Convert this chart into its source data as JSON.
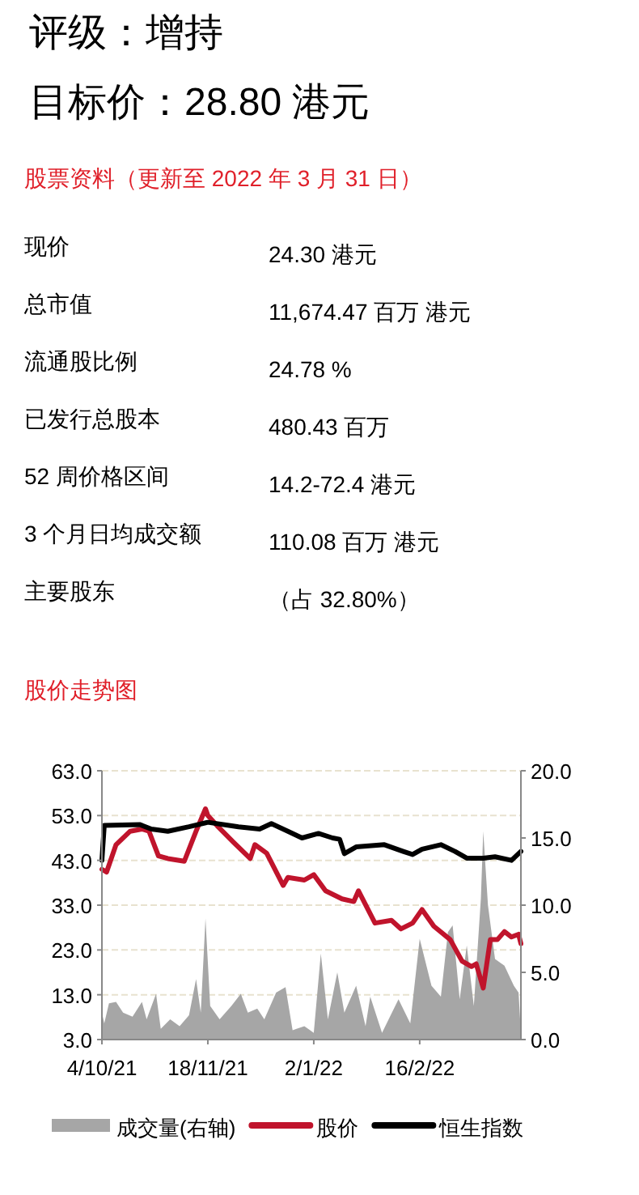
{
  "chart_data": [
    {
      "type": "other",
      "title": "评级：增持",
      "subtitle": "目标价：28.80 港元",
      "annotations": [
        "股票资料（更新至 2022 年 3 月 31 日）",
        "现价",
        "24.30 港元",
        "总市值",
        "11,674.47 百万 港元",
        "流通股比例",
        "24.78 %",
        "已发行总股本",
        "480.43 百万",
        "52 周价格区间",
        "14.2-72.4 港元",
        "3 个月日均成交额",
        "110.08 百万 港元",
        "主要股东",
        "（占 32.80%）"
      ]
    },
    {
      "type": "line",
      "title": "股价走势图",
      "xlim": [
        "2021-10-04",
        "2022-03-31"
      ],
      "xticks": [
        {
          "value": "2021-10-04",
          "label": "4/10/21"
        },
        {
          "value": "2021-11-18",
          "label": "18/11/21"
        },
        {
          "value": "2022-01-02",
          "label": "2/1/22"
        },
        {
          "value": "2022-02-16",
          "label": "16/2/22"
        }
      ],
      "ylim": [
        3,
        63
      ],
      "yticks": [
        {
          "value": 3,
          "label": "3.0"
        },
        {
          "value": 13,
          "label": "13.0"
        },
        {
          "value": 23,
          "label": "23.0"
        },
        {
          "value": 33,
          "label": "33.0"
        },
        {
          "value": 43,
          "label": "43.0"
        },
        {
          "value": 53,
          "label": "53.0"
        },
        {
          "value": 63,
          "label": "63.0"
        }
      ],
      "y2lim": [
        0,
        20
      ],
      "y2ticks": [
        {
          "value": 0,
          "label": "0.0"
        },
        {
          "value": 5,
          "label": "5.0"
        },
        {
          "value": 10,
          "label": "10.0"
        },
        {
          "value": 15,
          "label": "15.0"
        },
        {
          "value": 20,
          "label": "20.0"
        }
      ],
      "grid": "y",
      "legend": "bottom",
      "series": [
        {
          "name": "成交量(右轴)",
          "type": "area",
          "axis": "y2",
          "color": "#a6a6a6",
          "x": [
            "2021-10-04",
            "2021-10-05",
            "2021-10-07",
            "2021-10-10",
            "2021-10-13",
            "2021-10-17",
            "2021-10-21",
            "2021-10-23",
            "2021-10-27",
            "2021-10-29",
            "2021-11-02",
            "2021-11-06",
            "2021-11-10",
            "2021-11-13",
            "2021-11-15",
            "2021-11-17",
            "2021-11-19",
            "2021-11-23",
            "2021-11-28",
            "2021-12-02",
            "2021-12-05",
            "2021-12-09",
            "2021-12-12",
            "2021-12-17",
            "2021-12-21",
            "2021-12-24",
            "2021-12-29",
            "2022-01-02",
            "2022-01-05",
            "2022-01-08",
            "2022-01-12",
            "2022-01-15",
            "2022-01-20",
            "2022-01-24",
            "2022-01-26",
            "2022-01-31",
            "2022-02-07",
            "2022-02-12",
            "2022-02-16",
            "2022-02-21",
            "2022-02-25",
            "2022-02-28",
            "2022-03-02",
            "2022-03-05",
            "2022-03-08",
            "2022-03-11",
            "2022-03-14",
            "2022-03-15",
            "2022-03-17",
            "2022-03-20",
            "2022-03-24",
            "2022-03-28",
            "2022-03-30",
            "2022-03-31"
          ],
          "values": [
            2.0,
            1.2,
            2.7,
            2.8,
            2.0,
            1.7,
            2.8,
            1.5,
            3.4,
            0.8,
            1.5,
            1.0,
            1.8,
            4.5,
            2.0,
            9.0,
            2.5,
            1.5,
            2.5,
            3.4,
            2.0,
            2.3,
            1.5,
            3.5,
            3.9,
            0.7,
            1.0,
            0.5,
            6.4,
            1.5,
            5.0,
            2.0,
            4.0,
            1.0,
            3.2,
            0.5,
            3.0,
            1.2,
            7.5,
            4.0,
            3.2,
            8.0,
            8.5,
            3.0,
            7.0,
            2.5,
            10.5,
            15.5,
            10.0,
            6.0,
            5.5,
            4.0,
            3.5,
            0.5
          ]
        },
        {
          "name": "股价",
          "type": "line",
          "color": "#c0142c",
          "x": [
            "2021-10-04",
            "2021-10-06",
            "2021-10-10",
            "2021-10-16",
            "2021-10-21",
            "2021-10-24",
            "2021-10-28",
            "2021-11-01",
            "2021-11-08",
            "2021-11-13",
            "2021-11-17",
            "2021-11-18",
            "2021-11-22",
            "2021-11-29",
            "2021-12-06",
            "2021-12-08",
            "2021-12-13",
            "2021-12-20",
            "2021-12-22",
            "2021-12-29",
            "2022-01-02",
            "2022-01-07",
            "2022-01-14",
            "2022-01-19",
            "2022-01-21",
            "2022-01-28",
            "2022-02-04",
            "2022-02-08",
            "2022-02-13",
            "2022-02-17",
            "2022-02-22",
            "2022-03-01",
            "2022-03-06",
            "2022-03-10",
            "2022-03-12",
            "2022-03-15",
            "2022-03-18",
            "2022-03-21",
            "2022-03-24",
            "2022-03-27",
            "2022-03-30",
            "2022-03-31"
          ],
          "values": [
            41.0,
            40.4,
            46.5,
            49.5,
            50.0,
            49.5,
            44.0,
            43.4,
            42.8,
            49.5,
            54.5,
            53.0,
            50.7,
            47.0,
            43.4,
            46.5,
            44.6,
            37.4,
            39.2,
            38.6,
            39.8,
            36.2,
            34.4,
            33.8,
            36.2,
            29.0,
            29.6,
            27.7,
            29.0,
            32.0,
            28.3,
            25.3,
            20.5,
            19.3,
            19.9,
            14.5,
            25.3,
            25.3,
            27.1,
            25.9,
            26.5,
            24.4
          ]
        },
        {
          "name": "恒生指数",
          "type": "line",
          "color": "#000000",
          "x": [
            "2021-10-04",
            "2021-10-05",
            "2021-10-20",
            "2021-10-25",
            "2021-11-01",
            "2021-11-10",
            "2021-11-18",
            "2021-12-01",
            "2021-12-10",
            "2021-12-15",
            "2021-12-22",
            "2021-12-28",
            "2022-01-04",
            "2022-01-10",
            "2022-01-13",
            "2022-01-15",
            "2022-01-20",
            "2022-02-01",
            "2022-02-09",
            "2022-02-13",
            "2022-02-17",
            "2022-02-25",
            "2022-03-03",
            "2022-03-08",
            "2022-03-15",
            "2022-03-20",
            "2022-03-27",
            "2022-03-31"
          ],
          "values": [
            43.0,
            50.8,
            51.0,
            50.0,
            49.5,
            50.5,
            51.5,
            50.5,
            50.0,
            51.2,
            49.5,
            48.0,
            49.0,
            48.0,
            47.7,
            44.5,
            46.0,
            46.5,
            45.0,
            44.3,
            45.5,
            46.5,
            45.0,
            43.5,
            43.5,
            43.8,
            43.0,
            45.0
          ]
        }
      ]
    }
  ]
}
